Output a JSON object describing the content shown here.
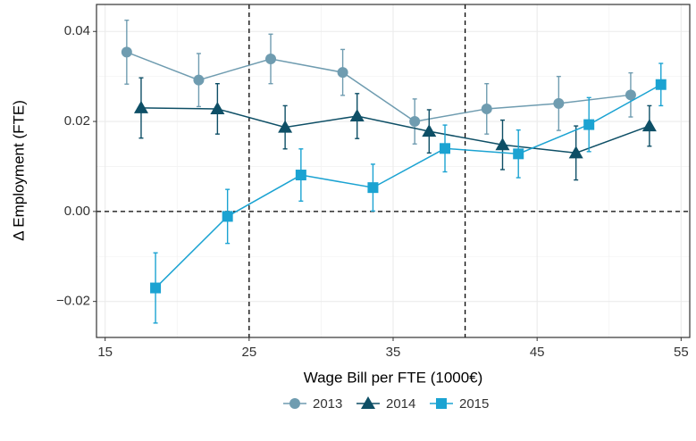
{
  "chart_data": {
    "type": "line",
    "x_label": "Wage Bill per FTE (1000€)",
    "y_label": "Δ Employment (FTE)",
    "xlim": [
      14.4,
      55.6
    ],
    "ylim": [
      -0.028,
      0.046
    ],
    "xticks": [
      15,
      25,
      35,
      45,
      55
    ],
    "yticks": [
      {
        "value": -0.02,
        "label": "−0.02"
      },
      {
        "value": 0,
        "label": "0.00"
      },
      0.02,
      0.04
    ],
    "x_minor_grid": [
      20,
      30,
      40,
      50
    ],
    "y_minor_grid": [
      -0.01,
      0.01,
      0.03
    ],
    "vlines": [
      25,
      40
    ],
    "hlines": [
      0
    ],
    "grid": true,
    "legend": "bottom",
    "series": [
      {
        "name": "2013",
        "color": "#6f9cb0",
        "marker": "circle",
        "x": [
          16.5,
          21.5,
          26.5,
          31.5,
          36.5,
          41.5,
          46.5,
          51.5
        ],
        "values": [
          0.0354,
          0.0292,
          0.0339,
          0.0309,
          0.02,
          0.0228,
          0.024,
          0.0259
        ],
        "errors": [
          0.0071,
          0.0059,
          0.0055,
          0.0051,
          0.005,
          0.0056,
          0.006,
          0.0049
        ]
      },
      {
        "name": "2014",
        "color": "#0e4f66",
        "marker": "triangle",
        "x": [
          17.5,
          22.8,
          27.5,
          32.5,
          37.5,
          42.6,
          47.7,
          52.8
        ],
        "values": [
          0.023,
          0.0228,
          0.0187,
          0.0212,
          0.0178,
          0.0148,
          0.013,
          0.019
        ],
        "errors": [
          0.0067,
          0.0056,
          0.0048,
          0.005,
          0.0048,
          0.0055,
          0.006,
          0.0045
        ]
      },
      {
        "name": "2015",
        "color": "#1ba3d2",
        "marker": "square",
        "x": [
          18.5,
          23.5,
          28.6,
          33.6,
          38.6,
          43.7,
          48.6,
          53.6
        ],
        "values": [
          -0.017,
          -0.0011,
          0.0081,
          0.0053,
          0.014,
          0.0128,
          0.0193,
          0.0282
        ],
        "errors": [
          0.0078,
          0.006,
          0.0058,
          0.0052,
          0.0052,
          0.0053,
          0.006,
          0.0047
        ]
      }
    ]
  }
}
